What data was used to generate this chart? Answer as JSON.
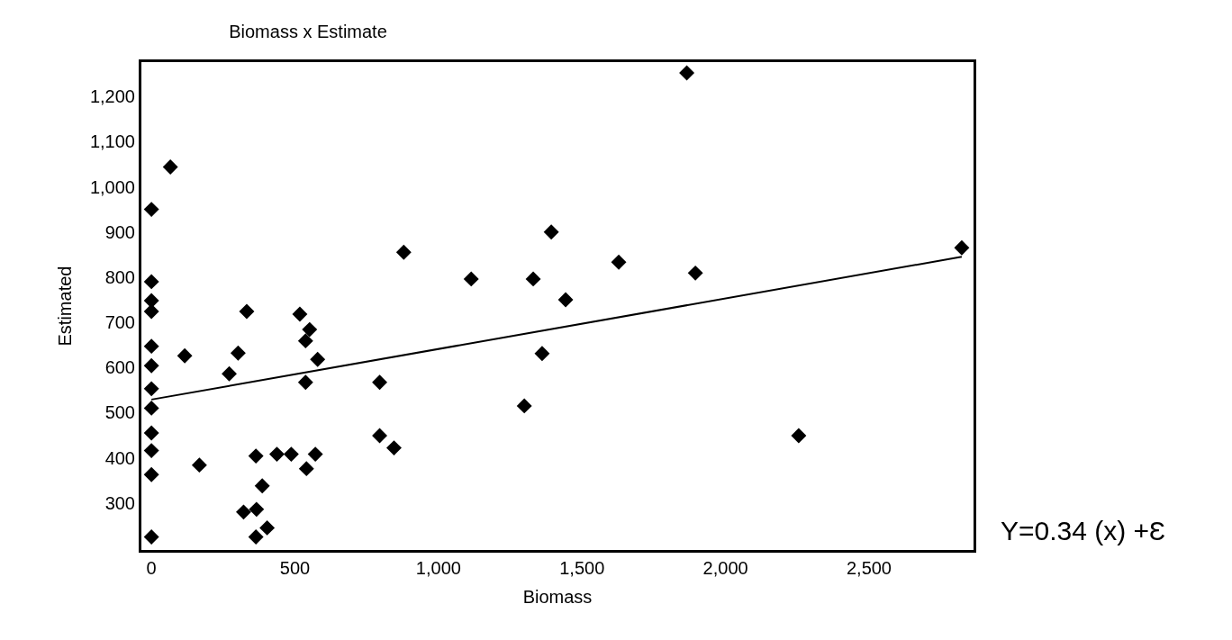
{
  "chart_data": {
    "type": "scatter",
    "title": "Biomass x Estimate",
    "xlabel": "Biomass",
    "ylabel": "Estimated",
    "xlim": [
      -35,
      2864
    ],
    "ylim": [
      196,
      1276
    ],
    "xticks": [
      0,
      500,
      {
        "value": 1000,
        "label": "1,000"
      },
      {
        "value": 1500,
        "label": "1,500"
      },
      {
        "value": 2000,
        "label": "2,000"
      },
      {
        "value": 2500,
        "label": "2,500"
      }
    ],
    "yticks": [
      300,
      400,
      500,
      600,
      700,
      800,
      900,
      {
        "value": 1000,
        "label": "1,000"
      },
      {
        "value": 1100,
        "label": "1,100"
      },
      {
        "value": 1200,
        "label": "1,200"
      }
    ],
    "marker": "diamond",
    "series": [
      {
        "color": "#000000",
        "x": [
          0,
          0,
          0,
          0,
          0,
          0,
          0,
          0,
          0,
          0,
          0,
          0,
          66,
          116,
          167,
          271,
          302,
          332,
          321,
          366,
          364,
          386,
          364,
          403,
          437,
          487,
          517,
          551,
          537,
          579,
          537,
          571,
          540,
          795,
          795,
          845,
          879,
          1865,
          1393,
          1114,
          1330,
          1628,
          1895,
          1443,
          1361,
          1299,
          2255,
          2823
        ],
        "values": [
          950,
          790,
          748,
          724,
          647,
          604,
          553,
          510,
          455,
          416,
          363,
          225,
          1044,
          626,
          384,
          586,
          632,
          724,
          280,
          286,
          404,
          338,
          225,
          245,
          408,
          408,
          718,
          684,
          659,
          618,
          567,
          408,
          376,
          567,
          449,
          422,
          855,
          1252,
          900,
          796,
          796,
          833,
          809,
          750,
          631,
          515,
          449,
          865
        ]
      },
      {
        "type": "line",
        "color": "#000000",
        "line_style": "solid",
        "marker": "none",
        "x": [
          0,
          2823
        ],
        "values": [
          529,
          845
        ]
      }
    ],
    "annotations": [
      "Y=0.34 (x) +Ɛ"
    ]
  }
}
